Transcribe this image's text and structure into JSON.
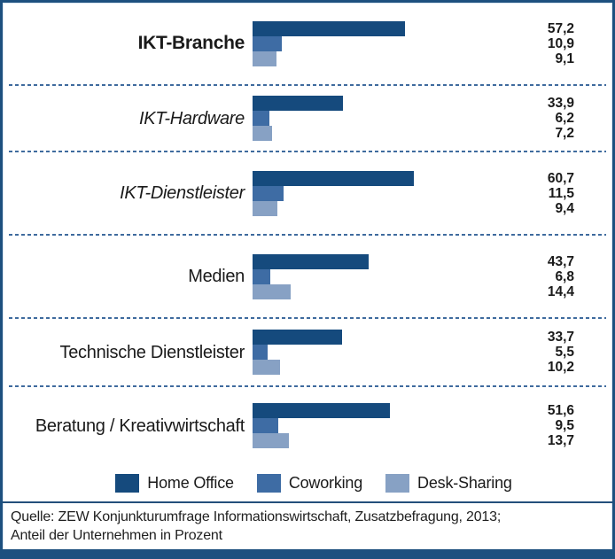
{
  "chart_data": {
    "type": "bar",
    "orientation": "horizontal",
    "title": "",
    "categories": [
      "IKT-Branche",
      "IKT-Hardware",
      "IKT-Dienstleister",
      "Medien",
      "Technische Dienstleister",
      "Beratung / Kreativwirtschaft"
    ],
    "category_emphasis": [
      "bold",
      "italic",
      "italic",
      "normal",
      "normal",
      "normal"
    ],
    "series": [
      {
        "name": "Home Office",
        "color": "#154a7d",
        "values": [
          57.2,
          33.9,
          60.7,
          43.7,
          33.7,
          51.6
        ]
      },
      {
        "name": "Coworking",
        "color": "#3e6ca4",
        "values": [
          10.9,
          6.2,
          11.5,
          6.8,
          5.5,
          9.5
        ]
      },
      {
        "name": "Desk-Sharing",
        "color": "#87a1c4",
        "values": [
          9.1,
          7.2,
          9.4,
          14.4,
          10.2,
          13.7
        ]
      }
    ],
    "value_labels": [
      [
        "57,2",
        "10,9",
        "9,1"
      ],
      [
        "33,9",
        "6,2",
        "7,2"
      ],
      [
        "60,7",
        "11,5",
        "9,4"
      ],
      [
        "43,7",
        "6,8",
        "14,4"
      ],
      [
        "33,7",
        "5,5",
        "10,2"
      ],
      [
        "51,6",
        "9,5",
        "13,7"
      ]
    ],
    "xlim": [
      0,
      65
    ],
    "grid": false,
    "legend_position": "bottom",
    "unit": "Prozent"
  },
  "legend": {
    "items": [
      "Home Office",
      "Coworking",
      "Desk-Sharing"
    ]
  },
  "footer": {
    "lines": [
      "Quelle: ZEW Konjunkturumfrage Informationswirtschaft, Zusatzbefragung, 2013;",
      "Anteil der Unternehmen in Prozent"
    ]
  },
  "colors": {
    "home_office": "#154a7d",
    "coworking": "#3e6ca4",
    "desk_sharing": "#87a1c4",
    "frame_border": "#1d507f",
    "separator": "#3f6b9e",
    "text": "#1a1a1a"
  }
}
